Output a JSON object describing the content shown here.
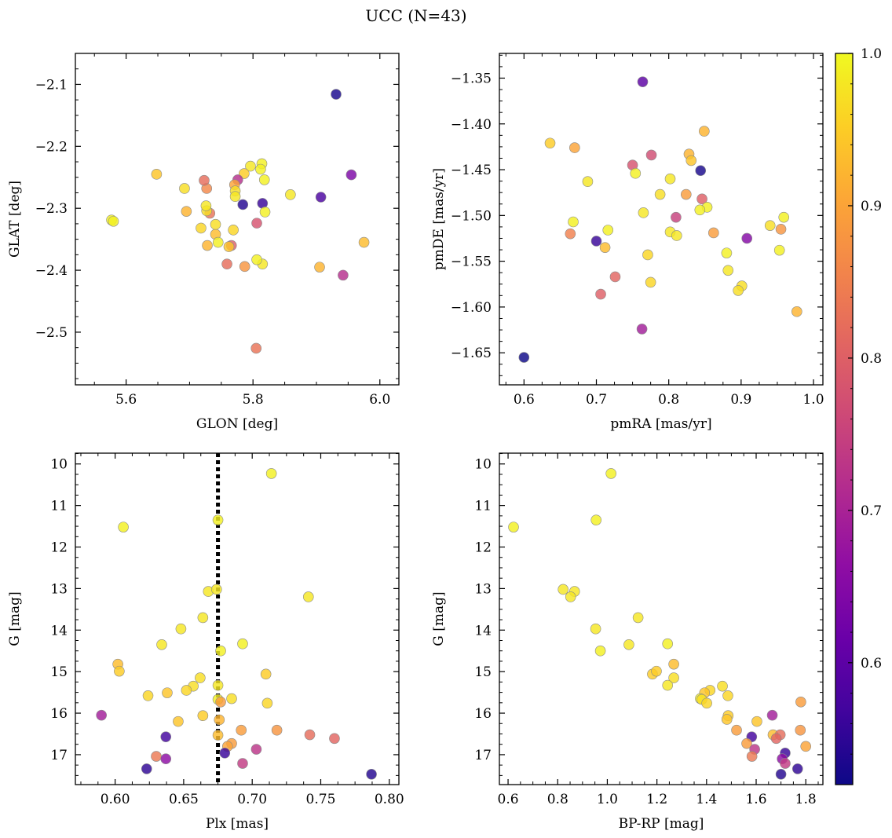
{
  "figure": {
    "title": "UCC (N=43)"
  },
  "colorbar": {
    "min": 0.52,
    "max": 1.0,
    "ticks": [
      {
        "value": 0.6,
        "label": "0.6"
      },
      {
        "value": 0.7,
        "label": "0.7"
      },
      {
        "value": 0.8,
        "label": "0.8"
      },
      {
        "value": 0.9,
        "label": "0.9"
      },
      {
        "value": 1.0,
        "label": "1.0"
      }
    ],
    "colormap": "plasma"
  },
  "chart_data": [
    {
      "id": "glon-glat",
      "type": "scatter",
      "xlabel": "GLON [deg]",
      "ylabel": "GLAT [deg]",
      "xlim": [
        5.52,
        6.03
      ],
      "ylim": [
        -2.585,
        -2.05
      ],
      "y_inverted": false,
      "xticks": [
        {
          "value": 5.6,
          "label": "5.6"
        },
        {
          "value": 5.8,
          "label": "5.8"
        },
        {
          "value": 6.0,
          "label": "6.0"
        }
      ],
      "yticks": [
        {
          "value": -2.5,
          "label": "−2.5"
        },
        {
          "value": -2.4,
          "label": "−2.4"
        },
        {
          "value": -2.3,
          "label": "−2.3"
        },
        {
          "value": -2.2,
          "label": "−2.2"
        },
        {
          "value": -2.1,
          "label": "−2.1"
        }
      ],
      "points": [
        [
          5.931,
          -2.116,
          0.53
        ],
        [
          5.955,
          -2.246,
          0.64
        ],
        [
          5.907,
          -2.282,
          0.58
        ],
        [
          5.942,
          -2.408,
          0.72
        ],
        [
          5.905,
          -2.395,
          0.92
        ],
        [
          5.975,
          -2.355,
          0.93
        ],
        [
          5.859,
          -2.278,
          0.98
        ],
        [
          5.815,
          -2.292,
          0.56
        ],
        [
          5.784,
          -2.294,
          0.54
        ],
        [
          5.806,
          -2.324,
          0.78
        ],
        [
          5.805,
          -2.526,
          0.83
        ],
        [
          5.815,
          -2.39,
          0.98
        ],
        [
          5.806,
          -2.383,
          0.99
        ],
        [
          5.819,
          -2.306,
          0.99
        ],
        [
          5.818,
          -2.254,
          0.99
        ],
        [
          5.814,
          -2.228,
          0.99
        ],
        [
          5.812,
          -2.237,
          0.99
        ],
        [
          5.796,
          -2.232,
          0.98
        ],
        [
          5.786,
          -2.244,
          0.95
        ],
        [
          5.776,
          -2.254,
          0.72
        ],
        [
          5.771,
          -2.262,
          0.9
        ],
        [
          5.772,
          -2.272,
          0.97
        ],
        [
          5.772,
          -2.281,
          0.98
        ],
        [
          5.769,
          -2.335,
          0.96
        ],
        [
          5.766,
          -2.36,
          0.8
        ],
        [
          5.762,
          -2.362,
          0.94
        ],
        [
          5.759,
          -2.39,
          0.82
        ],
        [
          5.787,
          -2.394,
          0.88
        ],
        [
          5.741,
          -2.342,
          0.93
        ],
        [
          5.741,
          -2.326,
          0.97
        ],
        [
          5.732,
          -2.308,
          0.83
        ],
        [
          5.727,
          -2.304,
          0.97
        ],
        [
          5.726,
          -2.296,
          0.98
        ],
        [
          5.727,
          -2.268,
          0.86
        ],
        [
          5.723,
          -2.255,
          0.82
        ],
        [
          5.728,
          -2.36,
          0.92
        ],
        [
          5.718,
          -2.332,
          0.96
        ],
        [
          5.695,
          -2.305,
          0.92
        ],
        [
          5.692,
          -2.268,
          0.97
        ],
        [
          5.648,
          -2.245,
          0.94
        ],
        [
          5.577,
          -2.319,
          0.99
        ],
        [
          5.58,
          -2.321,
          0.99
        ],
        [
          5.745,
          -2.355,
          0.99
        ]
      ]
    },
    {
      "id": "pmra-pmde",
      "type": "scatter",
      "xlabel": "pmRA [mas/yr]",
      "ylabel": "pmDE [mas/yr]",
      "xlim": [
        0.566,
        1.013
      ],
      "ylim": [
        -1.685,
        -1.323
      ],
      "y_inverted": false,
      "xticks": [
        {
          "value": 0.6,
          "label": "0.6"
        },
        {
          "value": 0.7,
          "label": "0.7"
        },
        {
          "value": 0.8,
          "label": "0.8"
        },
        {
          "value": 0.9,
          "label": "0.9"
        },
        {
          "value": 1.0,
          "label": "1.0"
        }
      ],
      "yticks": [
        {
          "value": -1.65,
          "label": "−1.65"
        },
        {
          "value": -1.6,
          "label": "−1.60"
        },
        {
          "value": -1.55,
          "label": "−1.55"
        },
        {
          "value": -1.5,
          "label": "−1.50"
        },
        {
          "value": -1.45,
          "label": "−1.45"
        },
        {
          "value": -1.4,
          "label": "−1.40"
        },
        {
          "value": -1.35,
          "label": "−1.35"
        }
      ],
      "points": [
        [
          0.764,
          -1.354,
          0.6
        ],
        [
          0.636,
          -1.421,
          0.95
        ],
        [
          0.67,
          -1.426,
          0.9
        ],
        [
          0.849,
          -1.408,
          0.92
        ],
        [
          0.776,
          -1.434,
          0.77
        ],
        [
          0.75,
          -1.445,
          0.78
        ],
        [
          0.754,
          -1.454,
          0.99
        ],
        [
          0.828,
          -1.433,
          0.92
        ],
        [
          0.831,
          -1.44,
          0.94
        ],
        [
          0.844,
          -1.451,
          0.53
        ],
        [
          0.688,
          -1.463,
          0.98
        ],
        [
          0.802,
          -1.46,
          0.98
        ],
        [
          0.824,
          -1.477,
          0.89
        ],
        [
          0.788,
          -1.477,
          0.97
        ],
        [
          0.846,
          -1.482,
          0.8
        ],
        [
          0.853,
          -1.491,
          0.99
        ],
        [
          0.843,
          -1.494,
          0.99
        ],
        [
          0.765,
          -1.497,
          0.98
        ],
        [
          0.81,
          -1.502,
          0.75
        ],
        [
          0.959,
          -1.502,
          0.99
        ],
        [
          0.668,
          -1.507,
          0.99
        ],
        [
          0.664,
          -1.52,
          0.85
        ],
        [
          0.716,
          -1.516,
          0.99
        ],
        [
          0.802,
          -1.518,
          0.98
        ],
        [
          0.811,
          -1.522,
          0.98
        ],
        [
          0.862,
          -1.519,
          0.89
        ],
        [
          0.94,
          -1.511,
          0.97
        ],
        [
          0.955,
          -1.515,
          0.88
        ],
        [
          0.908,
          -1.525,
          0.65
        ],
        [
          0.7,
          -1.528,
          0.56
        ],
        [
          0.712,
          -1.535,
          0.93
        ],
        [
          0.771,
          -1.543,
          0.96
        ],
        [
          0.953,
          -1.538,
          0.99
        ],
        [
          0.88,
          -1.541,
          0.99
        ],
        [
          0.882,
          -1.56,
          0.98
        ],
        [
          0.726,
          -1.567,
          0.81
        ],
        [
          0.775,
          -1.573,
          0.96
        ],
        [
          0.706,
          -1.586,
          0.8
        ],
        [
          0.901,
          -1.577,
          0.97
        ],
        [
          0.896,
          -1.582,
          0.97
        ],
        [
          0.977,
          -1.605,
          0.92
        ],
        [
          0.763,
          -1.624,
          0.69
        ],
        [
          0.6,
          -1.655,
          0.52
        ]
      ]
    },
    {
      "id": "plx-g",
      "type": "scatter",
      "xlabel": "Plx [mas]",
      "ylabel": "G [mag]",
      "xlim": [
        0.571,
        0.807
      ],
      "ylim": [
        17.72,
        9.74
      ],
      "y_inverted": true,
      "vline": {
        "x": 0.675,
        "style": "dotted",
        "color": "#000000"
      },
      "xticks": [
        {
          "value": 0.6,
          "label": "0.60"
        },
        {
          "value": 0.65,
          "label": "0.65"
        },
        {
          "value": 0.7,
          "label": "0.70"
        },
        {
          "value": 0.75,
          "label": "0.75"
        },
        {
          "value": 0.8,
          "label": "0.80"
        }
      ],
      "yticks": [
        {
          "value": 10,
          "label": "10"
        },
        {
          "value": 11,
          "label": "11"
        },
        {
          "value": 12,
          "label": "12"
        },
        {
          "value": 13,
          "label": "13"
        },
        {
          "value": 14,
          "label": "14"
        },
        {
          "value": 15,
          "label": "15"
        },
        {
          "value": 16,
          "label": "16"
        },
        {
          "value": 17,
          "label": "17"
        }
      ],
      "points": [
        [
          0.714,
          10.23,
          0.99
        ],
        [
          0.675,
          11.35,
          0.99
        ],
        [
          0.606,
          11.52,
          0.99
        ],
        [
          0.668,
          13.07,
          0.98
        ],
        [
          0.674,
          13.02,
          0.98
        ],
        [
          0.741,
          13.2,
          0.98
        ],
        [
          0.664,
          13.7,
          0.98
        ],
        [
          0.648,
          13.97,
          0.98
        ],
        [
          0.634,
          14.35,
          0.98
        ],
        [
          0.693,
          14.33,
          0.99
        ],
        [
          0.677,
          14.5,
          0.99
        ],
        [
          0.602,
          14.82,
          0.93
        ],
        [
          0.603,
          14.99,
          0.95
        ],
        [
          0.71,
          15.06,
          0.95
        ],
        [
          0.662,
          15.15,
          0.97
        ],
        [
          0.675,
          15.33,
          0.98
        ],
        [
          0.657,
          15.35,
          0.97
        ],
        [
          0.652,
          15.45,
          0.96
        ],
        [
          0.638,
          15.51,
          0.94
        ],
        [
          0.624,
          15.58,
          0.96
        ],
        [
          0.675,
          15.67,
          0.99
        ],
        [
          0.685,
          15.65,
          0.97
        ],
        [
          0.677,
          15.73,
          0.89
        ],
        [
          0.711,
          15.76,
          0.96
        ],
        [
          0.664,
          16.06,
          0.95
        ],
        [
          0.59,
          16.05,
          0.69
        ],
        [
          0.646,
          16.2,
          0.94
        ],
        [
          0.676,
          16.16,
          0.92
        ],
        [
          0.692,
          16.41,
          0.89
        ],
        [
          0.718,
          16.41,
          0.88
        ],
        [
          0.742,
          16.52,
          0.82
        ],
        [
          0.76,
          16.61,
          0.81
        ],
        [
          0.675,
          16.53,
          0.93
        ],
        [
          0.637,
          16.57,
          0.57
        ],
        [
          0.685,
          16.73,
          0.89
        ],
        [
          0.682,
          16.8,
          0.9
        ],
        [
          0.703,
          16.87,
          0.73
        ],
        [
          0.68,
          16.96,
          0.56
        ],
        [
          0.63,
          17.04,
          0.84
        ],
        [
          0.637,
          17.1,
          0.66
        ],
        [
          0.693,
          17.21,
          0.74
        ],
        [
          0.623,
          17.34,
          0.55
        ],
        [
          0.787,
          17.47,
          0.54
        ]
      ]
    },
    {
      "id": "bprp-g",
      "type": "scatter",
      "xlabel": "BP-RP [mag]",
      "ylabel": "G [mag]",
      "xlim": [
        0.565,
        1.869
      ],
      "ylim": [
        17.72,
        9.74
      ],
      "y_inverted": true,
      "xticks": [
        {
          "value": 0.6,
          "label": "0.6"
        },
        {
          "value": 0.8,
          "label": "0.8"
        },
        {
          "value": 1.0,
          "label": "1.0"
        },
        {
          "value": 1.2,
          "label": "1.2"
        },
        {
          "value": 1.4,
          "label": "1.4"
        },
        {
          "value": 1.6,
          "label": "1.6"
        },
        {
          "value": 1.8,
          "label": "1.8"
        }
      ],
      "yticks": [
        {
          "value": 10,
          "label": "10"
        },
        {
          "value": 11,
          "label": "11"
        },
        {
          "value": 12,
          "label": "12"
        },
        {
          "value": 13,
          "label": "13"
        },
        {
          "value": 14,
          "label": "14"
        },
        {
          "value": 15,
          "label": "15"
        },
        {
          "value": 16,
          "label": "16"
        },
        {
          "value": 17,
          "label": "17"
        }
      ],
      "points": [
        [
          1.015,
          10.23,
          0.99
        ],
        [
          0.955,
          11.35,
          0.99
        ],
        [
          0.622,
          11.52,
          0.99
        ],
        [
          0.822,
          13.02,
          0.98
        ],
        [
          0.868,
          13.07,
          0.98
        ],
        [
          0.852,
          13.2,
          0.98
        ],
        [
          1.124,
          13.7,
          0.98
        ],
        [
          0.953,
          13.97,
          0.98
        ],
        [
          0.972,
          14.5,
          0.99
        ],
        [
          1.087,
          14.35,
          0.98
        ],
        [
          1.243,
          14.33,
          0.99
        ],
        [
          1.268,
          14.82,
          0.93
        ],
        [
          1.182,
          15.06,
          0.95
        ],
        [
          1.198,
          14.99,
          0.95
        ],
        [
          1.268,
          15.15,
          0.97
        ],
        [
          1.243,
          15.33,
          0.98
        ],
        [
          1.464,
          15.35,
          0.97
        ],
        [
          1.414,
          15.45,
          0.96
        ],
        [
          1.392,
          15.51,
          0.94
        ],
        [
          1.486,
          15.58,
          0.96
        ],
        [
          1.375,
          15.65,
          0.99
        ],
        [
          1.381,
          15.67,
          0.97
        ],
        [
          1.401,
          15.76,
          0.96
        ],
        [
          1.78,
          15.73,
          0.89
        ],
        [
          1.487,
          16.06,
          0.95
        ],
        [
          1.482,
          16.15,
          0.94
        ],
        [
          1.603,
          16.2,
          0.94
        ],
        [
          1.665,
          16.05,
          0.69
        ],
        [
          1.521,
          16.41,
          0.89
        ],
        [
          1.778,
          16.41,
          0.88
        ],
        [
          1.668,
          16.52,
          0.93
        ],
        [
          1.697,
          16.52,
          0.82
        ],
        [
          1.582,
          16.57,
          0.57
        ],
        [
          1.681,
          16.61,
          0.81
        ],
        [
          1.562,
          16.73,
          0.89
        ],
        [
          1.594,
          16.87,
          0.73
        ],
        [
          1.8,
          16.8,
          0.9
        ],
        [
          1.583,
          17.04,
          0.84
        ],
        [
          1.717,
          16.96,
          0.56
        ],
        [
          1.705,
          17.1,
          0.66
        ],
        [
          1.717,
          17.21,
          0.74
        ],
        [
          1.767,
          17.34,
          0.55
        ],
        [
          1.7,
          17.47,
          0.54
        ]
      ]
    }
  ]
}
